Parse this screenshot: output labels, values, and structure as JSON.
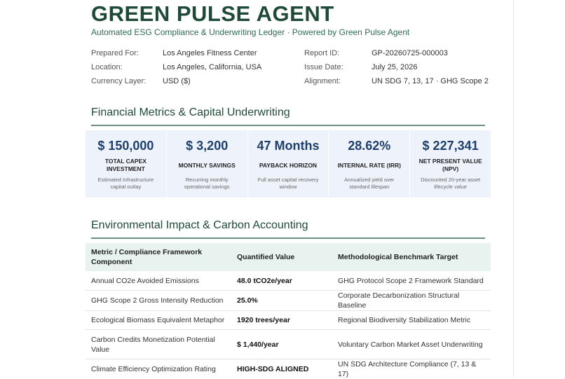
{
  "header": {
    "title": "GREEN PULSE AGENT",
    "subtitle": "Automated ESG Compliance & Underwriting Ledger · Powered by Green Pulse Agent"
  },
  "meta": {
    "prepared_for_label": "Prepared For:",
    "prepared_for": "Los Angeles Fitness Center",
    "location_label": "Location:",
    "location": "Los Angeles, California, USA",
    "currency_label": "Currency Layer:",
    "currency": "USD ($)",
    "report_id_label": "Report ID:",
    "report_id": "GP-20260725-000003",
    "issue_date_label": "Issue Date:",
    "issue_date": "July 25, 2026",
    "alignment_label": "Alignment:",
    "alignment": "UN SDG 7, 13, 17 · GHG Scope 2"
  },
  "financial": {
    "heading": "Financial Metrics & Capital Underwriting",
    "kpis": [
      {
        "value": "$ 150,000",
        "label": "TOTAL CAPEX INVESTMENT",
        "desc": "Estimated Infrastructure capital outlay"
      },
      {
        "value": "$ 3,200",
        "label": "MONTHLY SAVINGS",
        "desc": "Recurring monthly operational savings"
      },
      {
        "value": "47 Months",
        "label": "PAYBACK HORIZON",
        "desc": "Full asset capital recovery window"
      },
      {
        "value": "28.62%",
        "label": "INTERNAL RATE (IRR)",
        "desc": "Annualized yield over standard lifespan"
      },
      {
        "value": "$ 227,341",
        "label": "NET PRESENT VALUE (NPV)",
        "desc": "Discounted 20-year asset lifecycle value"
      }
    ]
  },
  "environmental": {
    "heading": "Environmental Impact & Carbon Accounting",
    "columns": [
      "Metric / Compliance Framework Component",
      "Quantified Value",
      "Methodological Benchmark Target"
    ],
    "rows": [
      {
        "metric": "Annual CO2e Avoided Emissions",
        "value": "48.0 tCO2e/year",
        "benchmark": "GHG Protocol Scope 2 Framework Standard"
      },
      {
        "metric": "GHG Scope 2 Gross Intensity Reduction",
        "value": "25.0%",
        "benchmark": "Corporate Decarbonization Structural Baseline"
      },
      {
        "metric": "Ecological Biomass Equivalent Metaphor",
        "value": "1920 trees/year",
        "benchmark": "Regional Biodiversity Stabilization Metric"
      },
      {
        "metric": "Carbon Credits Monetization Potential Value",
        "value": "$ 1,440/year",
        "benchmark": "Voluntary Carbon Market Asset Underwriting"
      },
      {
        "metric": "Climate Efficiency Optimization Rating",
        "value": "HIGH-SDG ALIGNED",
        "benchmark": "UN SDG Architecture Compliance (7, 13 & 17)"
      }
    ]
  }
}
